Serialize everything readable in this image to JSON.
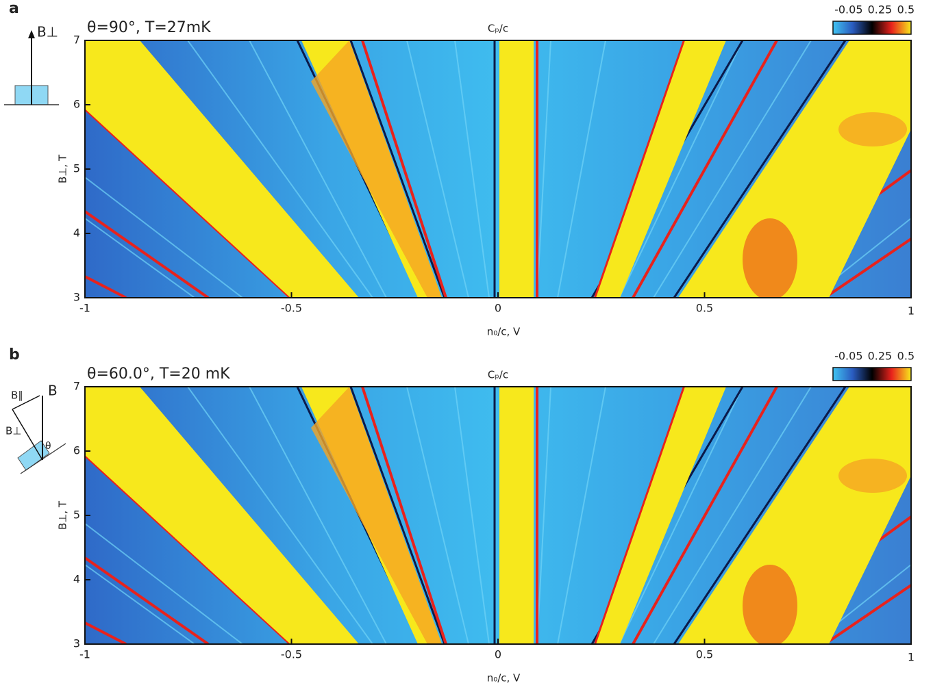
{
  "chart_data": [
    {
      "type": "heatmap",
      "panel_label": "a",
      "title": "θ=90°, T=27mK",
      "colorbar_label": "Cₚ/c",
      "colorbar_ticks": [
        -0.05,
        0.25,
        0.5
      ],
      "clim": [
        -0.2,
        0.55
      ],
      "colormap": [
        "#41c4f2",
        "#2a5cc0",
        "#000000",
        "#e8221c",
        "#f7e81c"
      ],
      "xlabel": "n₀/c, V",
      "ylabel": "B⊥, T",
      "xlim": [
        -1,
        1
      ],
      "xticks": [
        -1,
        -0.5,
        0,
        0.5,
        1
      ],
      "ylim": [
        3,
        7
      ],
      "yticks": [
        3,
        4,
        5,
        6,
        7
      ],
      "inset_labels": [
        "B⊥"
      ]
    },
    {
      "type": "heatmap",
      "panel_label": "b",
      "title": "θ=60.0°, T=20 mK",
      "colorbar_label": "Cₚ/c",
      "colorbar_ticks": [
        -0.05,
        0.25,
        0.5
      ],
      "clim": [
        -0.2,
        0.55
      ],
      "colormap": [
        "#41c4f2",
        "#2a5cc0",
        "#000000",
        "#e8221c",
        "#f7e81c"
      ],
      "xlabel": "n₀/c, V",
      "ylabel": "B⊥, T",
      "xlim": [
        -1,
        1
      ],
      "xticks": [
        -1,
        -0.5,
        0,
        0.5,
        1
      ],
      "ylim": [
        3,
        7
      ],
      "yticks": [
        3,
        4,
        5,
        6,
        7
      ],
      "inset_labels": [
        "B∥",
        "B",
        "B⊥",
        "θ"
      ]
    }
  ]
}
